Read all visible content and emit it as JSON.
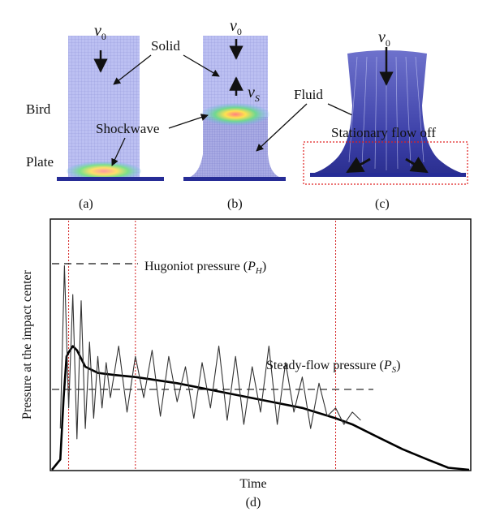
{
  "panels": {
    "a": {
      "caption": "(a)",
      "labels": {
        "velocity": "v",
        "velocity_sub": "0",
        "bird": "Bird",
        "plate": "Plate"
      }
    },
    "b": {
      "caption": "(b)",
      "labels": {
        "velocity": "v",
        "velocity_sub": "0",
        "shock_velocity": "v",
        "shock_velocity_sub": "S"
      }
    },
    "c": {
      "caption": "(c)",
      "labels": {
        "velocity": "v",
        "velocity_sub": "0",
        "stationary": "Stationary flow off"
      }
    },
    "shared_labels": {
      "solid": "Solid",
      "shockwave": "Shockwave",
      "fluid": "Fluid"
    },
    "colors": {
      "mesh_fill": "#b9bdf0",
      "mesh_line": "#8f93d8",
      "plate": "#262c96",
      "stationary_box": "#e02020"
    }
  },
  "chart": {
    "caption": "(d)",
    "xlabel": "Time",
    "ylabel": "Pressure at the impact center",
    "annotations": {
      "hugoniot": "Hugoniot pressure (",
      "hugoniot_sym": "P",
      "hugoniot_sub": "H",
      "steady": "Steady-flow pressure (",
      "steady_sym": "P",
      "steady_sub": "S",
      "close": ")"
    },
    "colors": {
      "phase_lines": "#d42020",
      "curve": "#000000",
      "noisy": "#333333"
    }
  },
  "chart_data": {
    "type": "line",
    "title": "",
    "xlabel": "Time",
    "ylabel": "Pressure at the impact center",
    "ticks": "none",
    "reference_lines": [
      {
        "name": "Hugoniot pressure (P_H)",
        "y": 1.0
      },
      {
        "name": "Steady-flow pressure (P_S)",
        "y": 0.39
      }
    ],
    "phase_boundaries_x": [
      0.04,
      0.2,
      0.68
    ],
    "series": [
      {
        "style": "thick",
        "x": [
          0.0,
          0.02,
          0.028,
          0.035,
          0.04,
          0.05,
          0.06,
          0.08,
          0.11,
          0.15,
          0.2,
          0.3,
          0.4,
          0.5,
          0.6,
          0.68,
          0.72,
          0.78,
          0.84,
          0.9,
          0.95,
          1.0
        ],
        "values": [
          0.0,
          0.05,
          0.35,
          0.55,
          0.57,
          0.6,
          0.58,
          0.5,
          0.47,
          0.46,
          0.45,
          0.42,
          0.38,
          0.34,
          0.3,
          0.25,
          0.22,
          0.16,
          0.1,
          0.05,
          0.01,
          0.0
        ]
      },
      {
        "style": "thin-oscillating",
        "x": [
          0.02,
          0.03,
          0.04,
          0.05,
          0.06,
          0.07,
          0.08,
          0.09,
          0.1,
          0.11,
          0.12,
          0.13,
          0.14,
          0.16,
          0.18,
          0.2,
          0.22,
          0.24,
          0.26,
          0.28,
          0.3,
          0.32,
          0.34,
          0.36,
          0.38,
          0.4,
          0.42,
          0.44,
          0.46,
          0.48,
          0.5,
          0.52,
          0.54,
          0.56,
          0.58,
          0.6,
          0.62,
          0.64,
          0.66,
          0.68,
          0.7,
          0.72,
          0.74
        ],
        "values": [
          0.2,
          0.99,
          0.3,
          0.85,
          0.15,
          0.82,
          0.2,
          0.62,
          0.25,
          0.55,
          0.3,
          0.52,
          0.35,
          0.6,
          0.28,
          0.55,
          0.35,
          0.58,
          0.26,
          0.55,
          0.33,
          0.5,
          0.25,
          0.52,
          0.3,
          0.6,
          0.24,
          0.55,
          0.22,
          0.5,
          0.28,
          0.6,
          0.22,
          0.52,
          0.28,
          0.45,
          0.2,
          0.42,
          0.26,
          0.3,
          0.22,
          0.28,
          0.24
        ]
      }
    ]
  }
}
